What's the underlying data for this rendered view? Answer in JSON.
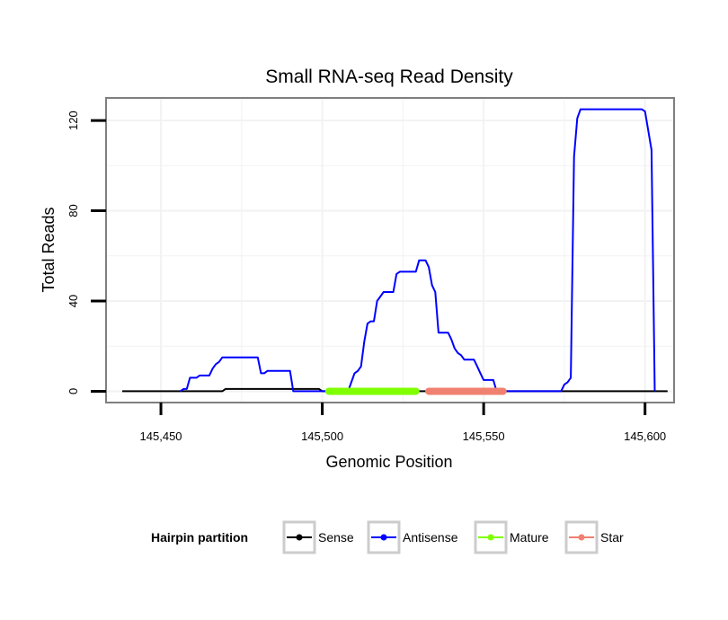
{
  "chart_data": {
    "type": "line",
    "title": "Small RNA-seq Read Density",
    "xlabel": "Genomic Position",
    "ylabel": "Total Reads",
    "xlim": [
      145433,
      145609
    ],
    "ylim": [
      -5,
      130
    ],
    "xticks": [
      145450,
      145500,
      145550,
      145600
    ],
    "xtick_labels": [
      "145,450",
      "145,500",
      "145,550",
      "145,600"
    ],
    "yticks": [
      0,
      40,
      80,
      120
    ],
    "ytick_labels": [
      "0",
      "40",
      "80",
      "120"
    ],
    "grid": true,
    "legend": {
      "title": "Hairpin partition",
      "position": "bottom",
      "entries": [
        {
          "name": "Sense",
          "color": "#000000"
        },
        {
          "name": "Antisense",
          "color": "#0000ff"
        },
        {
          "name": "Mature",
          "color": "#7fff00"
        },
        {
          "name": "Star",
          "color": "#f08070"
        }
      ]
    },
    "series": [
      {
        "name": "Sense",
        "color": "#000000",
        "points": [
          [
            145438,
            0
          ],
          [
            145469,
            0
          ],
          [
            145470,
            1
          ],
          [
            145499,
            1
          ],
          [
            145500,
            0
          ],
          [
            145607,
            0
          ]
        ]
      },
      {
        "name": "Antisense",
        "color": "#0000ff",
        "points": [
          [
            145456,
            0
          ],
          [
            145457,
            1
          ],
          [
            145458,
            1
          ],
          [
            145459,
            6
          ],
          [
            145460,
            6
          ],
          [
            145461,
            6
          ],
          [
            145462,
            7
          ],
          [
            145463,
            7
          ],
          [
            145464,
            7
          ],
          [
            145465,
            7
          ],
          [
            145466,
            10
          ],
          [
            145467,
            12
          ],
          [
            145468,
            13
          ],
          [
            145469,
            15
          ],
          [
            145470,
            15
          ],
          [
            145480,
            15
          ],
          [
            145481,
            8
          ],
          [
            145482,
            8
          ],
          [
            145483,
            9
          ],
          [
            145490,
            9
          ],
          [
            145491,
            0
          ],
          [
            145508,
            0
          ],
          [
            145509,
            4
          ],
          [
            145510,
            8
          ],
          [
            145511,
            9
          ],
          [
            145512,
            11
          ],
          [
            145513,
            22
          ],
          [
            145514,
            30
          ],
          [
            145515,
            31
          ],
          [
            145516,
            31
          ],
          [
            145517,
            40
          ],
          [
            145518,
            42
          ],
          [
            145519,
            44
          ],
          [
            145522,
            44
          ],
          [
            145523,
            52
          ],
          [
            145524,
            53
          ],
          [
            145529,
            53
          ],
          [
            145530,
            58
          ],
          [
            145532,
            58
          ],
          [
            145533,
            55
          ],
          [
            145534,
            47
          ],
          [
            145535,
            44
          ],
          [
            145536,
            26
          ],
          [
            145539,
            26
          ],
          [
            145540,
            23
          ],
          [
            145541,
            19
          ],
          [
            145542,
            17
          ],
          [
            145543,
            16
          ],
          [
            145544,
            14
          ],
          [
            145547,
            14
          ],
          [
            145548,
            11
          ],
          [
            145549,
            8
          ],
          [
            145550,
            5
          ],
          [
            145553,
            5
          ],
          [
            145554,
            0
          ],
          [
            145574,
            0
          ],
          [
            145575,
            3
          ],
          [
            145576,
            4
          ],
          [
            145577,
            6
          ],
          [
            145578,
            104
          ],
          [
            145579,
            121
          ],
          [
            145580,
            125
          ],
          [
            145599,
            125
          ],
          [
            145600,
            124
          ],
          [
            145602,
            107
          ],
          [
            145603,
            0
          ]
        ]
      }
    ],
    "segments": [
      {
        "name": "Mature",
        "color": "#7fff00",
        "start": 145502,
        "end": 145529,
        "y": 0
      },
      {
        "name": "Star",
        "color": "#f08070",
        "start": 145533,
        "end": 145556,
        "y": 0
      }
    ]
  }
}
